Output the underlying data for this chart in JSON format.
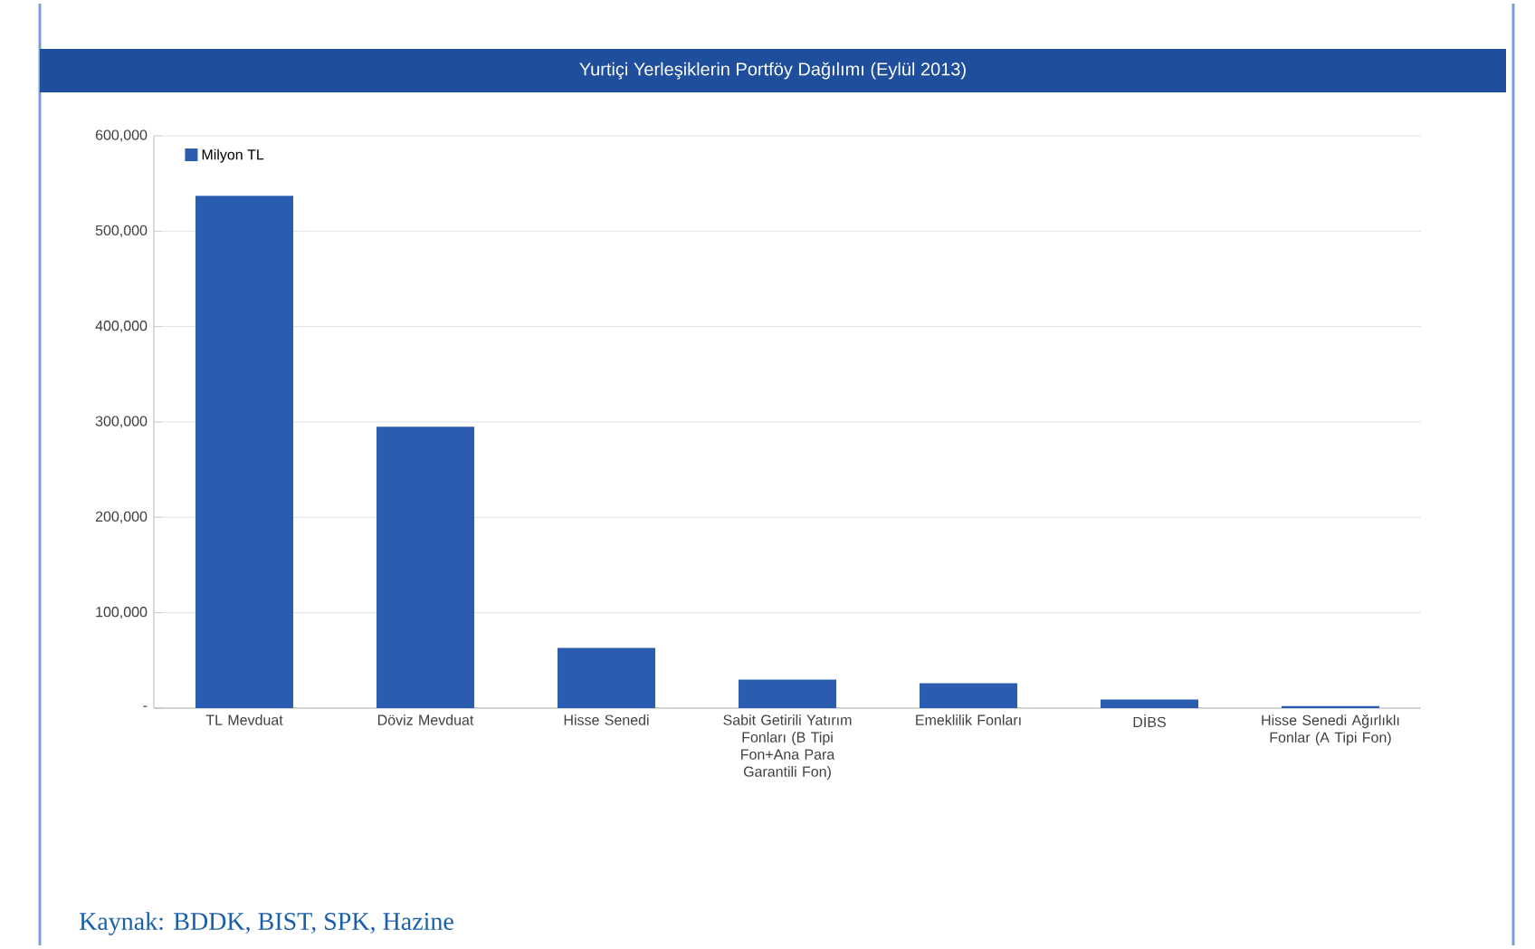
{
  "chart_data": {
    "type": "bar",
    "title": "Yurtiçi Yerleşiklerin Portföy Dağılımı (Eylül 2013)",
    "categories": [
      "TL Mevduat",
      "Döviz Mevduat",
      "Hisse Senedi",
      "Sabit Getirili Yatırım Fonları (B Tipi Fon+Ana Para Garantili Fon)",
      "Emeklilik Fonları",
      "DİBS",
      "Hisse Senedi Ağırlıklı Fonlar (A Tipi Fon)"
    ],
    "series": [
      {
        "name": "Milyon TL",
        "color": "#2a5db0",
        "values": [
          537000,
          295000,
          63000,
          30000,
          26000,
          9000,
          2000
        ]
      }
    ],
    "ylim": [
      0,
      600000
    ],
    "yticks": [
      {
        "value": 0,
        "label": "-"
      },
      {
        "value": 100000,
        "label": "100,000"
      },
      {
        "value": 200000,
        "label": "200,000"
      },
      {
        "value": 300000,
        "label": "300,000"
      },
      {
        "value": 400000,
        "label": "400,000"
      },
      {
        "value": 500000,
        "label": "500,000"
      },
      {
        "value": 600000,
        "label": "600,000"
      }
    ],
    "grid": "y",
    "legend": "top left",
    "annotations": [
      "Kaynak: BDDK, BIST, SPK, Hazine"
    ]
  }
}
